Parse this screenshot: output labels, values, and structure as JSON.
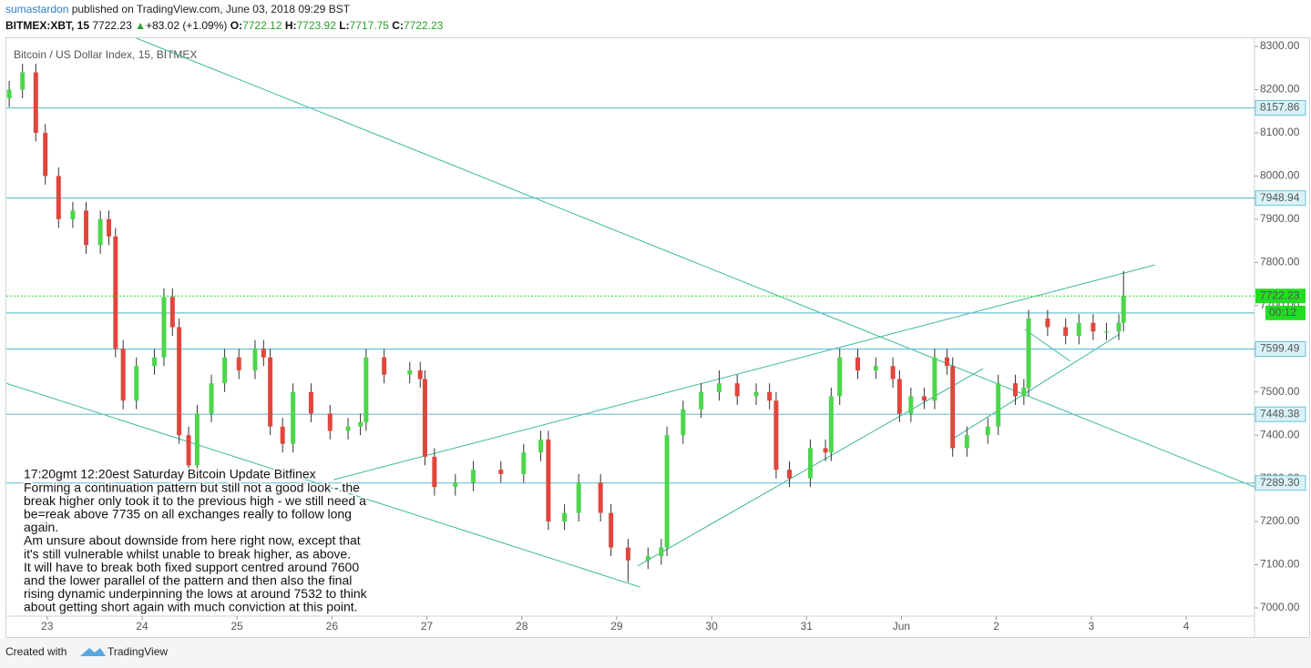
{
  "header": {
    "author": "sumastardon",
    "published": " published on TradingView.com, June 03, 2018 09:29 BST",
    "symbol": "BITMEX:XBT, 15",
    "price": "7722.23",
    "arrow": "▲",
    "change": "+83.02 (+1.09%)",
    "o_label": "O:",
    "o": "7722.12",
    "h_label": "H:",
    "h": "7723.92",
    "l_label": "L:",
    "l": "7717.75",
    "c_label": "C:",
    "c": "7722.23"
  },
  "footer": {
    "created": "Created with",
    "brand": "TradingView"
  },
  "chart_data": {
    "type": "candlestick",
    "title": "Bitcoin / US Dollar Index, 15, BITMEX",
    "xlim": [
      -0.43,
      12.72
    ],
    "xticks": [
      {
        "value": 0,
        "label": "23"
      },
      {
        "value": 1,
        "label": "24"
      },
      {
        "value": 2,
        "label": "25"
      },
      {
        "value": 3,
        "label": "26"
      },
      {
        "value": 4,
        "label": "27"
      },
      {
        "value": 5,
        "label": "28"
      },
      {
        "value": 6,
        "label": "29"
      },
      {
        "value": 7,
        "label": "30"
      },
      {
        "value": 8,
        "label": "31"
      },
      {
        "value": 9,
        "label": "Jun"
      },
      {
        "value": 10,
        "label": "2"
      },
      {
        "value": 11,
        "label": "3"
      },
      {
        "value": 12,
        "label": "4"
      }
    ],
    "ylim": [
      6981,
      8319
    ],
    "yticks": [
      {
        "value": 7000,
        "label": "7000.00"
      },
      {
        "value": 7100,
        "label": "7100.00"
      },
      {
        "value": 7200,
        "label": "7200.00"
      },
      {
        "value": 7300,
        "label": "7300.00"
      },
      {
        "value": 7400,
        "label": "7400.00"
      },
      {
        "value": 7500,
        "label": "7500.00"
      },
      {
        "value": 7600,
        "label": "7600.00"
      },
      {
        "value": 7700,
        "label": "7700.00"
      },
      {
        "value": 7800,
        "label": "7800.00"
      },
      {
        "value": 7900,
        "label": "7900.00"
      },
      {
        "value": 8000,
        "label": "8000.00"
      },
      {
        "value": 8100,
        "label": "8100.00"
      },
      {
        "value": 8200,
        "label": "8200.00"
      },
      {
        "value": 8300,
        "label": "8300.00"
      }
    ],
    "up_color": "#4cd64c",
    "down_color": "#e0463c",
    "wick_color": "#333333",
    "level_color": "#6cc2d6",
    "trend_color": "#3cb89a",
    "x": [
      -0.4,
      -0.26,
      -0.12,
      -0.02,
      0.12,
      0.27,
      0.41,
      0.56,
      0.65,
      0.72,
      0.8,
      0.94,
      1.13,
      1.23,
      1.32,
      1.39,
      1.49,
      1.58,
      1.73,
      1.87,
      2.02,
      2.19,
      2.28,
      2.35,
      2.48,
      2.59,
      2.78,
      2.98,
      3.17,
      3.3,
      3.36,
      3.55,
      3.82,
      3.93,
      3.98,
      4.08,
      4.3,
      4.49,
      4.78,
      5.02,
      5.2,
      5.28,
      5.45,
      5.6,
      5.83,
      5.94,
      6.12,
      6.33,
      6.47,
      6.53,
      6.7,
      6.89,
      7.08,
      7.27,
      7.47,
      7.61,
      7.68,
      7.82,
      8.04,
      8.2,
      8.26,
      8.35,
      8.54,
      8.73,
      8.91,
      8.98,
      9.1,
      9.24,
      9.35,
      9.48,
      9.54,
      9.69,
      9.91,
      10.02,
      10.2,
      10.29,
      10.34,
      10.54,
      10.73,
      10.87,
      11.02,
      11.16,
      11.29,
      11.34
    ],
    "open": [
      8180,
      8200,
      8240,
      8100,
      8000,
      7900,
      7920,
      7840,
      7900,
      7860,
      7600,
      7480,
      7560,
      7580,
      7720,
      7650,
      7400,
      7330,
      7450,
      7520,
      7580,
      7550,
      7600,
      7580,
      7420,
      7380,
      7500,
      7450,
      7410,
      7420,
      7430,
      7580,
      7540,
      7550,
      7530,
      7350,
      7280,
      7290,
      7320,
      7310,
      7360,
      7390,
      7200,
      7220,
      7290,
      7220,
      7140,
      7110,
      7120,
      7140,
      7400,
      7460,
      7500,
      7520,
      7490,
      7500,
      7480,
      7320,
      7300,
      7370,
      7360,
      7490,
      7580,
      7550,
      7560,
      7530,
      7450,
      7490,
      7480,
      7580,
      7560,
      7370,
      7400,
      7420,
      7520,
      7490,
      7510,
      7670,
      7650,
      7630,
      7660,
      7640,
      7640,
      7660
    ],
    "high": [
      8220,
      8260,
      8260,
      8120,
      8020,
      7940,
      7940,
      7920,
      7920,
      7880,
      7620,
      7580,
      7600,
      7740,
      7740,
      7670,
      7420,
      7470,
      7540,
      7600,
      7600,
      7620,
      7620,
      7600,
      7440,
      7520,
      7520,
      7470,
      7440,
      7450,
      7600,
      7600,
      7570,
      7570,
      7550,
      7370,
      7310,
      7340,
      7340,
      7380,
      7410,
      7410,
      7240,
      7310,
      7310,
      7240,
      7160,
      7140,
      7160,
      7420,
      7480,
      7520,
      7550,
      7540,
      7520,
      7520,
      7500,
      7340,
      7390,
      7390,
      7510,
      7600,
      7600,
      7580,
      7580,
      7550,
      7510,
      7510,
      7600,
      7600,
      7580,
      7420,
      7440,
      7540,
      7540,
      7530,
      7690,
      7690,
      7670,
      7680,
      7680,
      7660,
      7680,
      7780
    ],
    "low": [
      8160,
      8180,
      8080,
      7980,
      7880,
      7880,
      7820,
      7820,
      7840,
      7580,
      7460,
      7460,
      7540,
      7560,
      7630,
      7380,
      7310,
      7310,
      7430,
      7500,
      7530,
      7530,
      7560,
      7400,
      7360,
      7360,
      7430,
      7390,
      7390,
      7400,
      7410,
      7520,
      7520,
      7510,
      7330,
      7260,
      7260,
      7270,
      7290,
      7290,
      7340,
      7180,
      7180,
      7200,
      7200,
      7120,
      7060,
      7090,
      7100,
      7120,
      7380,
      7440,
      7480,
      7470,
      7470,
      7460,
      7300,
      7280,
      7280,
      7340,
      7340,
      7470,
      7530,
      7530,
      7510,
      7430,
      7430,
      7460,
      7460,
      7540,
      7350,
      7350,
      7380,
      7400,
      7470,
      7470,
      7490,
      7630,
      7610,
      7610,
      7620,
      7620,
      7620,
      7640
    ],
    "close": [
      8200,
      8240,
      8100,
      8000,
      7900,
      7920,
      7840,
      7900,
      7860,
      7600,
      7480,
      7560,
      7580,
      7720,
      7650,
      7400,
      7330,
      7450,
      7520,
      7580,
      7550,
      7600,
      7580,
      7420,
      7380,
      7500,
      7450,
      7410,
      7420,
      7430,
      7580,
      7540,
      7550,
      7530,
      7350,
      7280,
      7290,
      7320,
      7310,
      7360,
      7390,
      7200,
      7220,
      7290,
      7220,
      7140,
      7110,
      7120,
      7140,
      7400,
      7460,
      7500,
      7520,
      7490,
      7500,
      7480,
      7320,
      7300,
      7370,
      7360,
      7490,
      7580,
      7550,
      7560,
      7530,
      7450,
      7490,
      7480,
      7580,
      7560,
      7370,
      7400,
      7420,
      7520,
      7490,
      7510,
      7670,
      7650,
      7630,
      7660,
      7640,
      7640,
      7660,
      7722.23
    ],
    "levels": {
      "values": [
        8157.86,
        7948.94,
        7683,
        7599.49,
        7448.38,
        7289.3
      ],
      "value_labels": [
        "8157.86",
        "7948.94",
        null,
        "7599.49",
        "7448.38",
        "7289.30"
      ]
    },
    "last": {
      "value": 7722.23,
      "label": "7722.23",
      "color": "#22dd22"
    },
    "countdown": "00:12",
    "trendlines": [
      {
        "x": [
          0.94,
          12.72
        ],
        "y": [
          8319,
          7280
        ]
      },
      {
        "x": [
          -0.43,
          6.25
        ],
        "y": [
          7520,
          7048
        ]
      },
      {
        "x": [
          3.02,
          11.67
        ],
        "y": [
          7297,
          7794
        ]
      },
      {
        "x": [
          6.22,
          9.86
        ],
        "y": [
          7097,
          7554
        ]
      },
      {
        "x": [
          9.53,
          11.3
        ],
        "y": [
          7390,
          7634
        ]
      },
      {
        "x": [
          10.3,
          10.78
        ],
        "y": [
          7645,
          7571
        ]
      }
    ],
    "annotation": [
      "17:20gmt 12:20est Saturday  Bitcoin Update Bitfinex",
      "Forming a continuation pattern  but still not a good look - the",
      "break higher only took it to the previous high - we still need a",
      "be=reak above 7735 on all exchanges really to follow long",
      "again.",
      "Am unsure about downside from here right now, except that",
      "it's still vulnerable whilst unable to break higher, as above.",
      "It will have to break both fixed support centred around 7600",
      "and the lower parallel of the pattern and then also the final",
      "rising dynamic underpinning the lows at around 7532 to think",
      "about getting short again with much conviction at this point."
    ]
  }
}
